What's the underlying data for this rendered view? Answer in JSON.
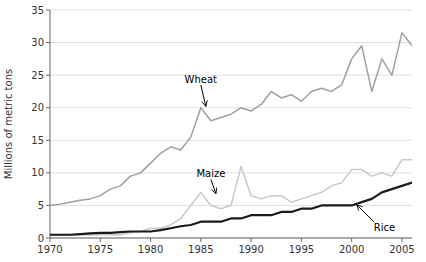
{
  "chart_data": {
    "type": "line",
    "ylabel": "Millions of metric tons",
    "x": [
      1970,
      1971,
      1972,
      1973,
      1974,
      1975,
      1976,
      1977,
      1978,
      1979,
      1980,
      1981,
      1982,
      1983,
      1984,
      1985,
      1986,
      1987,
      1988,
      1989,
      1990,
      1991,
      1992,
      1993,
      1994,
      1995,
      1996,
      1997,
      1998,
      1999,
      2000,
      2001,
      2002,
      2003,
      2004,
      2005,
      2006
    ],
    "series": [
      {
        "color": "#a0a0a0",
        "values": [
          5.0,
          5.2,
          5.5,
          5.8,
          6.0,
          6.5,
          7.5,
          8.0,
          9.5,
          10.0,
          11.5,
          13.0,
          14.0,
          13.5,
          15.5,
          20.0,
          18.0,
          18.5,
          19.0,
          20.0,
          19.5,
          20.5,
          22.5,
          21.5,
          22.0,
          21.0,
          22.5,
          23.0,
          22.5,
          23.5,
          27.5,
          29.5,
          22.5,
          27.5,
          25.0,
          31.5,
          29.5
        ]
      },
      {
        "color": "#c8c8c8",
        "values": [
          0.5,
          0.5,
          0.5,
          0.5,
          0.5,
          0.5,
          0.5,
          0.5,
          0.8,
          1.0,
          1.5,
          1.5,
          2.0,
          3.0,
          5.0,
          7.0,
          5.0,
          4.5,
          5.0,
          11.0,
          6.5,
          6.0,
          6.5,
          6.5,
          5.5,
          6.0,
          6.5,
          7.0,
          8.0,
          8.5,
          10.5,
          10.5,
          9.5,
          10.0,
          9.5,
          12.0,
          12.0
        ]
      },
      {
        "color": "#1a1a1a",
        "values": [
          0.5,
          0.5,
          0.5,
          0.6,
          0.7,
          0.8,
          0.8,
          0.9,
          1.0,
          1.0,
          1.0,
          1.2,
          1.5,
          1.8,
          2.0,
          2.5,
          2.5,
          2.5,
          3.0,
          3.0,
          3.5,
          3.5,
          3.5,
          4.0,
          4.0,
          4.5,
          4.5,
          5.0,
          5.0,
          5.0,
          5.0,
          5.5,
          6.0,
          7.0,
          7.5,
          8.0,
          8.5
        ]
      }
    ],
    "annotations": [
      {
        "text": "Wheat",
        "x": 1985.0,
        "y": 23.5,
        "arrow_x": 1985.5,
        "arrow_y": 20.2
      },
      {
        "text": "Maize",
        "x": 1986.0,
        "y": 9.0,
        "arrow_x": 1986.5,
        "arrow_y": 6.8
      },
      {
        "text": "Rice",
        "x": 2002.2,
        "y": 2.5,
        "arrow_x": 2000.5,
        "arrow_y": 5.1
      }
    ],
    "xlim": [
      1970,
      2006
    ],
    "ylim": [
      0,
      35
    ],
    "xticks": [
      1970,
      1975,
      1980,
      1985,
      1990,
      1995,
      2000,
      2005
    ],
    "yticks": [
      0,
      5,
      10,
      15,
      20,
      25,
      30,
      35
    ],
    "grid": true
  }
}
